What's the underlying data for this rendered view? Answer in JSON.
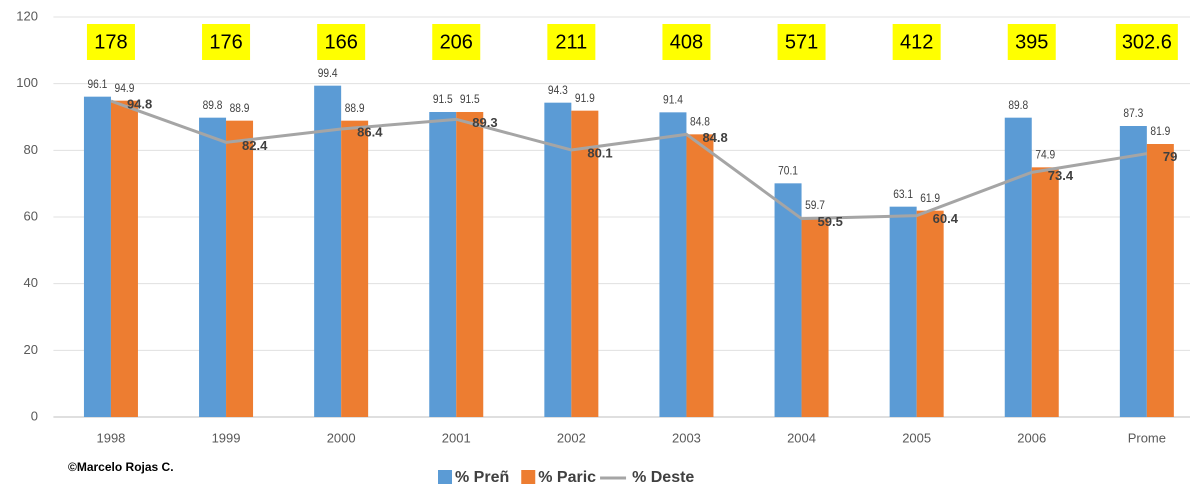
{
  "chart_data": {
    "type": "bar_line",
    "categories": [
      "1998",
      "1999",
      "2000",
      "2001",
      "2002",
      "2003",
      "2004",
      "2005",
      "2006",
      "Prome"
    ],
    "series": [
      {
        "name": "% Preñ",
        "color": "#5b9bd5",
        "type": "bar",
        "values": [
          96.1,
          89.8,
          99.4,
          91.5,
          94.3,
          91.4,
          70.1,
          63.1,
          89.8,
          87.3
        ]
      },
      {
        "name": "% Paric",
        "color": "#ed7d31",
        "type": "bar",
        "values": [
          94.9,
          88.9,
          88.9,
          91.5,
          91.9,
          84.8,
          59.7,
          61.9,
          74.9,
          81.9
        ]
      },
      {
        "name": "% Deste",
        "color": "#a5a5a5",
        "type": "line",
        "values": [
          94.8,
          82.4,
          86.4,
          89.3,
          80.1,
          84.8,
          59.5,
          60.4,
          73.4,
          79
        ]
      }
    ],
    "box_values": [
      178,
      176,
      166,
      206,
      211,
      408,
      571,
      412,
      395,
      302.6
    ],
    "box_color": "#ffff00",
    "ylim": [
      0,
      120
    ],
    "yticks": [
      0,
      20,
      40,
      60,
      80,
      100,
      120
    ],
    "grid": true,
    "legend": "bottom",
    "credit": "©Marcelo Rojas C."
  }
}
